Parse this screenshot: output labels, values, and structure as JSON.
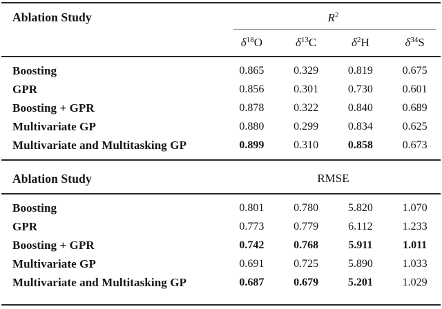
{
  "page": {
    "background": "#ffffff",
    "text_color": "#151515",
    "heavy_rule_color": "#272727",
    "cmidrule_color": "#8d8d8d"
  },
  "header": {
    "title": "Ablation Study",
    "metric": {
      "symbol": "R",
      "sup": "2"
    },
    "columns": [
      {
        "symbol": "δ",
        "sup": "18",
        "element": "O"
      },
      {
        "symbol": "δ",
        "sup": "13",
        "element": "C"
      },
      {
        "symbol": "δ",
        "sup": "2",
        "element": "H"
      },
      {
        "symbol": "δ",
        "sup": "34",
        "element": "S"
      }
    ]
  },
  "r2_section": {
    "title": "Ablation Study",
    "rows": [
      {
        "label": "Boosting",
        "values": [
          "0.865",
          "0.329",
          "0.819",
          "0.675"
        ]
      },
      {
        "label": "GPR",
        "values": [
          "0.856",
          "0.301",
          "0.730",
          "0.601"
        ]
      },
      {
        "label": "Boosting + GPR",
        "values": [
          "0.878",
          "0.322",
          "0.840",
          "0.689"
        ]
      },
      {
        "label": "Multivariate GP",
        "values": [
          "0.880",
          "0.299",
          "0.834",
          "0.625"
        ]
      },
      {
        "label": "Multivariate and Multitasking GP",
        "values": [
          "0.899",
          "0.310",
          "0.858",
          "0.673"
        ]
      }
    ]
  },
  "rmse_section": {
    "title": "Ablation Study",
    "metric_label": "RMSE",
    "rows": [
      {
        "label": "Boosting",
        "values": [
          "0.801",
          "0.780",
          "5.820",
          "1.070"
        ]
      },
      {
        "label": "GPR",
        "values": [
          "0.773",
          "0.779",
          "6.112",
          "1.233"
        ]
      },
      {
        "label": "Boosting + GPR",
        "values": [
          "0.742",
          "0.768",
          "5.911",
          "1.011"
        ]
      },
      {
        "label": "Multivariate GP",
        "values": [
          "0.691",
          "0.725",
          "5.890",
          "1.033"
        ]
      },
      {
        "label": "Multivariate and Multitasking GP",
        "values": [
          "0.687",
          "0.679",
          "5.201",
          "1.029"
        ]
      }
    ]
  },
  "chart_data": {
    "type": "table",
    "sections": [
      {
        "metric": "R^2",
        "columns": [
          "δ18O",
          "δ13C",
          "δ2H",
          "δ34S"
        ],
        "rows": [
          [
            "Boosting",
            0.865,
            0.329,
            0.819,
            0.675
          ],
          [
            "GPR",
            0.856,
            0.301,
            0.73,
            0.601
          ],
          [
            "Boosting + GPR",
            0.878,
            0.322,
            0.84,
            0.689
          ],
          [
            "Multivariate GP",
            0.88,
            0.299,
            0.834,
            0.625
          ],
          [
            "Multivariate and Multitasking GP",
            0.899,
            0.31,
            0.858,
            0.673
          ]
        ]
      },
      {
        "metric": "RMSE",
        "columns": [
          "δ18O",
          "δ13C",
          "δ2H",
          "δ34S"
        ],
        "rows": [
          [
            "Boosting",
            0.801,
            0.78,
            5.82,
            1.07
          ],
          [
            "GPR",
            0.773,
            0.779,
            6.112,
            1.233
          ],
          [
            "Boosting + GPR",
            0.742,
            0.768,
            5.911,
            1.011
          ],
          [
            "Multivariate GP",
            0.691,
            0.725,
            5.89,
            1.033
          ],
          [
            "Multivariate and Multitasking GP",
            0.687,
            0.679,
            5.201,
            1.029
          ]
        ]
      }
    ]
  }
}
